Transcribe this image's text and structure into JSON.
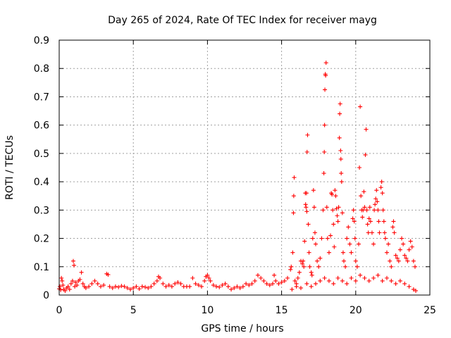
{
  "chart_data": {
    "type": "scatter",
    "title": "Day 265 of 2024, Rate Of TEC Index for receiver mayg",
    "xlabel": "GPS time / hours",
    "ylabel": "ROTI / TECUs",
    "xlim": [
      0,
      25
    ],
    "ylim": [
      0,
      0.9
    ],
    "xticks": [
      0,
      5,
      10,
      15,
      20,
      25
    ],
    "xtick_labels": [
      "0",
      "5",
      "10",
      "15",
      "20",
      "25"
    ],
    "yticks": [
      0,
      0.1,
      0.2,
      0.3,
      0.4,
      0.5,
      0.6,
      0.7,
      0.8,
      0.9
    ],
    "ytick_labels": [
      "0",
      "0.1",
      "0.2",
      "0.3",
      "0.4",
      "0.5",
      "0.6",
      "0.7",
      "0.8",
      "0.9"
    ],
    "grid": true,
    "marker": "+",
    "colors": {
      "points": "#ff0000",
      "grid": "#a0a0a0",
      "axes": "#000000"
    },
    "series": [
      {
        "name": "ROTI",
        "points": [
          [
            0.0,
            0.022
          ],
          [
            0.05,
            0.03
          ],
          [
            0.1,
            0.018
          ],
          [
            0.15,
            0.06
          ],
          [
            0.2,
            0.05
          ],
          [
            0.25,
            0.035
          ],
          [
            0.3,
            0.02
          ],
          [
            0.4,
            0.015
          ],
          [
            0.5,
            0.025
          ],
          [
            0.6,
            0.03
          ],
          [
            0.7,
            0.02
          ],
          [
            0.8,
            0.04
          ],
          [
            0.9,
            0.05
          ],
          [
            0.95,
            0.12
          ],
          [
            1.0,
            0.105
          ],
          [
            1.05,
            0.03
          ],
          [
            1.1,
            0.045
          ],
          [
            1.2,
            0.035
          ],
          [
            1.3,
            0.05
          ],
          [
            1.4,
            0.055
          ],
          [
            1.5,
            0.08
          ],
          [
            1.6,
            0.04
          ],
          [
            1.7,
            0.03
          ],
          [
            1.8,
            0.025
          ],
          [
            2.0,
            0.03
          ],
          [
            2.2,
            0.04
          ],
          [
            2.4,
            0.05
          ],
          [
            2.6,
            0.04
          ],
          [
            2.8,
            0.03
          ],
          [
            3.0,
            0.035
          ],
          [
            3.2,
            0.075
          ],
          [
            3.3,
            0.072
          ],
          [
            3.4,
            0.03
          ],
          [
            3.6,
            0.025
          ],
          [
            3.8,
            0.03
          ],
          [
            4.0,
            0.028
          ],
          [
            4.2,
            0.032
          ],
          [
            4.4,
            0.03
          ],
          [
            4.6,
            0.025
          ],
          [
            4.8,
            0.02
          ],
          [
            5.0,
            0.025
          ],
          [
            5.2,
            0.03
          ],
          [
            5.4,
            0.022
          ],
          [
            5.6,
            0.03
          ],
          [
            5.8,
            0.028
          ],
          [
            6.0,
            0.025
          ],
          [
            6.2,
            0.03
          ],
          [
            6.4,
            0.04
          ],
          [
            6.6,
            0.05
          ],
          [
            6.7,
            0.065
          ],
          [
            6.8,
            0.06
          ],
          [
            7.0,
            0.04
          ],
          [
            7.2,
            0.03
          ],
          [
            7.4,
            0.035
          ],
          [
            7.6,
            0.03
          ],
          [
            7.8,
            0.04
          ],
          [
            8.0,
            0.045
          ],
          [
            8.2,
            0.04
          ],
          [
            8.4,
            0.03
          ],
          [
            8.6,
            0.03
          ],
          [
            8.8,
            0.03
          ],
          [
            9.0,
            0.06
          ],
          [
            9.2,
            0.04
          ],
          [
            9.4,
            0.035
          ],
          [
            9.6,
            0.03
          ],
          [
            9.8,
            0.05
          ],
          [
            9.9,
            0.065
          ],
          [
            10.0,
            0.07
          ],
          [
            10.1,
            0.06
          ],
          [
            10.2,
            0.05
          ],
          [
            10.4,
            0.035
          ],
          [
            10.6,
            0.03
          ],
          [
            10.8,
            0.028
          ],
          [
            11.0,
            0.035
          ],
          [
            11.2,
            0.04
          ],
          [
            11.4,
            0.03
          ],
          [
            11.6,
            0.02
          ],
          [
            11.8,
            0.025
          ],
          [
            12.0,
            0.03
          ],
          [
            12.2,
            0.025
          ],
          [
            12.4,
            0.03
          ],
          [
            12.6,
            0.04
          ],
          [
            12.8,
            0.035
          ],
          [
            13.0,
            0.04
          ],
          [
            13.2,
            0.05
          ],
          [
            13.4,
            0.07
          ],
          [
            13.6,
            0.06
          ],
          [
            13.8,
            0.05
          ],
          [
            14.0,
            0.04
          ],
          [
            14.2,
            0.035
          ],
          [
            14.4,
            0.04
          ],
          [
            14.5,
            0.07
          ],
          [
            14.6,
            0.05
          ],
          [
            14.8,
            0.04
          ],
          [
            15.0,
            0.045
          ],
          [
            15.2,
            0.05
          ],
          [
            15.4,
            0.06
          ],
          [
            15.6,
            0.09
          ],
          [
            15.65,
            0.1
          ],
          [
            15.75,
            0.15
          ],
          [
            15.8,
            0.29
          ],
          [
            15.82,
            0.35
          ],
          [
            15.85,
            0.415
          ],
          [
            15.9,
            0.05
          ],
          [
            16.0,
            0.04
          ],
          [
            16.1,
            0.06
          ],
          [
            16.2,
            0.08
          ],
          [
            16.3,
            0.12
          ],
          [
            16.4,
            0.11
          ],
          [
            16.45,
            0.12
          ],
          [
            16.5,
            0.1
          ],
          [
            16.55,
            0.19
          ],
          [
            16.6,
            0.36
          ],
          [
            16.62,
            0.32
          ],
          [
            16.65,
            0.31
          ],
          [
            16.68,
            0.36
          ],
          [
            16.7,
            0.295
          ],
          [
            16.72,
            0.505
          ],
          [
            16.75,
            0.565
          ],
          [
            16.8,
            0.25
          ],
          [
            16.85,
            0.15
          ],
          [
            16.9,
            0.1
          ],
          [
            17.0,
            0.08
          ],
          [
            17.05,
            0.07
          ],
          [
            17.1,
            0.2
          ],
          [
            17.15,
            0.37
          ],
          [
            17.2,
            0.31
          ],
          [
            17.25,
            0.22
          ],
          [
            17.3,
            0.18
          ],
          [
            17.4,
            0.12
          ],
          [
            17.5,
            0.1
          ],
          [
            17.6,
            0.13
          ],
          [
            17.7,
            0.2
          ],
          [
            17.8,
            0.3
          ],
          [
            17.85,
            0.43
          ],
          [
            17.88,
            0.505
          ],
          [
            17.9,
            0.6
          ],
          [
            17.92,
            0.725
          ],
          [
            17.95,
            0.78
          ],
          [
            17.97,
            0.775
          ],
          [
            18.0,
            0.82
          ],
          [
            18.05,
            0.31
          ],
          [
            18.1,
            0.2
          ],
          [
            18.2,
            0.15
          ],
          [
            18.3,
            0.21
          ],
          [
            18.35,
            0.36
          ],
          [
            18.4,
            0.355
          ],
          [
            18.45,
            0.3
          ],
          [
            18.5,
            0.25
          ],
          [
            18.55,
            0.17
          ],
          [
            18.6,
            0.37
          ],
          [
            18.65,
            0.35
          ],
          [
            18.7,
            0.305
          ],
          [
            18.75,
            0.28
          ],
          [
            18.8,
            0.26
          ],
          [
            18.85,
            0.31
          ],
          [
            18.9,
            0.555
          ],
          [
            18.92,
            0.64
          ],
          [
            18.95,
            0.675
          ],
          [
            18.98,
            0.51
          ],
          [
            19.0,
            0.48
          ],
          [
            19.02,
            0.43
          ],
          [
            19.05,
            0.4
          ],
          [
            19.1,
            0.29
          ],
          [
            19.15,
            0.15
          ],
          [
            19.2,
            0.12
          ],
          [
            19.3,
            0.1
          ],
          [
            19.4,
            0.2
          ],
          [
            19.5,
            0.24
          ],
          [
            19.6,
            0.18
          ],
          [
            19.7,
            0.15
          ],
          [
            19.8,
            0.27
          ],
          [
            19.85,
            0.3
          ],
          [
            19.9,
            0.26
          ],
          [
            19.95,
            0.2
          ],
          [
            20.0,
            0.12
          ],
          [
            20.1,
            0.1
          ],
          [
            20.2,
            0.18
          ],
          [
            20.25,
            0.45
          ],
          [
            20.3,
            0.665
          ],
          [
            20.35,
            0.35
          ],
          [
            20.4,
            0.3
          ],
          [
            20.45,
            0.275
          ],
          [
            20.5,
            0.3
          ],
          [
            20.55,
            0.365
          ],
          [
            20.6,
            0.31
          ],
          [
            20.65,
            0.495
          ],
          [
            20.7,
            0.585
          ],
          [
            20.75,
            0.3
          ],
          [
            20.8,
            0.25
          ],
          [
            20.85,
            0.22
          ],
          [
            20.9,
            0.27
          ],
          [
            20.95,
            0.31
          ],
          [
            21.0,
            0.26
          ],
          [
            21.1,
            0.22
          ],
          [
            21.2,
            0.18
          ],
          [
            21.25,
            0.3
          ],
          [
            21.3,
            0.32
          ],
          [
            21.35,
            0.34
          ],
          [
            21.4,
            0.37
          ],
          [
            21.45,
            0.33
          ],
          [
            21.5,
            0.3
          ],
          [
            21.55,
            0.26
          ],
          [
            21.6,
            0.22
          ],
          [
            21.7,
            0.38
          ],
          [
            21.75,
            0.4
          ],
          [
            21.8,
            0.36
          ],
          [
            21.85,
            0.3
          ],
          [
            21.9,
            0.26
          ],
          [
            21.95,
            0.22
          ],
          [
            22.0,
            0.2
          ],
          [
            22.1,
            0.15
          ],
          [
            22.2,
            0.18
          ],
          [
            22.3,
            0.12
          ],
          [
            22.4,
            0.1
          ],
          [
            22.5,
            0.24
          ],
          [
            22.55,
            0.26
          ],
          [
            22.6,
            0.22
          ],
          [
            22.7,
            0.14
          ],
          [
            22.8,
            0.13
          ],
          [
            22.9,
            0.12
          ],
          [
            23.0,
            0.16
          ],
          [
            23.1,
            0.2
          ],
          [
            23.2,
            0.18
          ],
          [
            23.3,
            0.14
          ],
          [
            23.4,
            0.13
          ],
          [
            23.5,
            0.12
          ],
          [
            23.6,
            0.16
          ],
          [
            23.7,
            0.19
          ],
          [
            23.8,
            0.17
          ],
          [
            23.9,
            0.12
          ],
          [
            24.0,
            0.1
          ],
          [
            15.7,
            0.02
          ],
          [
            16.0,
            0.03
          ],
          [
            16.3,
            0.025
          ],
          [
            16.7,
            0.04
          ],
          [
            17.0,
            0.03
          ],
          [
            17.3,
            0.04
          ],
          [
            17.6,
            0.05
          ],
          [
            17.9,
            0.06
          ],
          [
            18.2,
            0.05
          ],
          [
            18.5,
            0.04
          ],
          [
            18.8,
            0.06
          ],
          [
            19.1,
            0.05
          ],
          [
            19.4,
            0.04
          ],
          [
            19.7,
            0.06
          ],
          [
            20.0,
            0.05
          ],
          [
            20.3,
            0.07
          ],
          [
            20.6,
            0.06
          ],
          [
            20.9,
            0.05
          ],
          [
            21.2,
            0.06
          ],
          [
            21.5,
            0.07
          ],
          [
            21.8,
            0.05
          ],
          [
            22.1,
            0.06
          ],
          [
            22.4,
            0.05
          ],
          [
            22.7,
            0.04
          ],
          [
            23.0,
            0.05
          ],
          [
            23.3,
            0.04
          ],
          [
            23.6,
            0.03
          ],
          [
            23.9,
            0.02
          ],
          [
            24.05,
            0.015
          ]
        ]
      }
    ]
  }
}
